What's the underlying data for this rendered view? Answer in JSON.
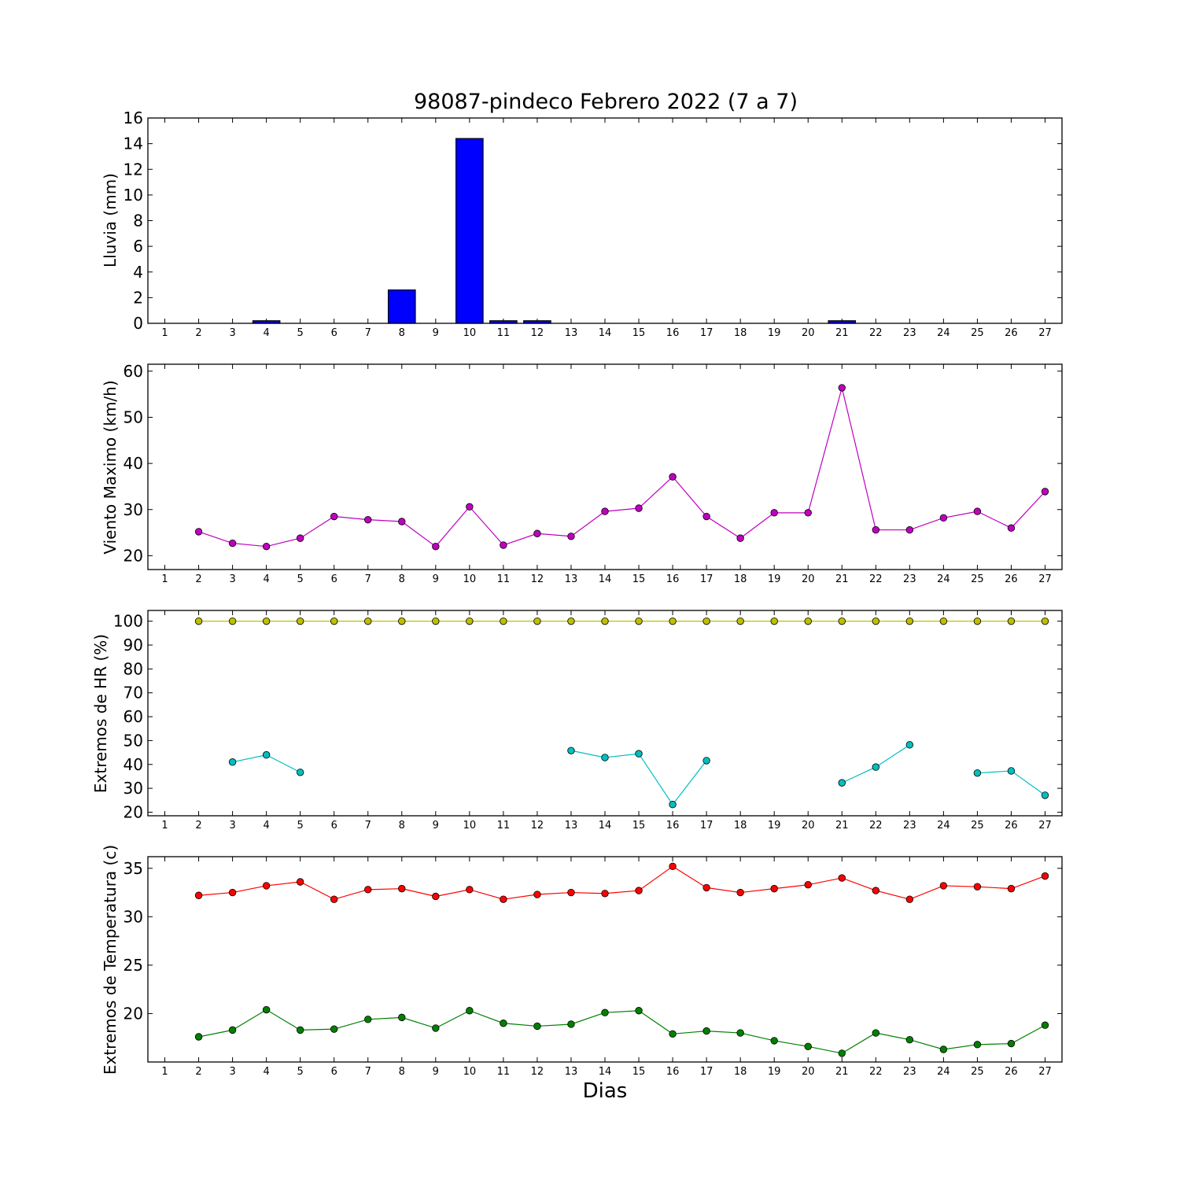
{
  "title": "98087-pindeco Febrero 2022  (7 a 7)",
  "xlabel": "Dias",
  "x_ticks": [
    1,
    2,
    3,
    4,
    5,
    6,
    7,
    8,
    9,
    10,
    11,
    12,
    13,
    14,
    15,
    16,
    17,
    18,
    19,
    20,
    21,
    22,
    23,
    24,
    25,
    26,
    27
  ],
  "chart_data": [
    {
      "type": "bar",
      "ylabel": "Lluvia (mm)",
      "ylim": [
        0,
        16
      ],
      "yticks": [
        0,
        2,
        4,
        6,
        8,
        10,
        12,
        14,
        16
      ],
      "xlim": [
        0.5,
        27.5
      ],
      "color": "#0000ff",
      "x": [
        2,
        3,
        4,
        5,
        6,
        7,
        8,
        9,
        10,
        11,
        12,
        13,
        14,
        15,
        16,
        17,
        18,
        19,
        20,
        21,
        22,
        23,
        24,
        25,
        26,
        27
      ],
      "values": [
        0,
        0,
        0.2,
        0,
        0,
        0,
        2.6,
        0,
        14.4,
        0.2,
        0.2,
        0,
        0,
        0,
        0,
        0,
        0,
        0,
        0,
        0.2,
        0,
        0,
        0,
        0,
        0,
        0
      ]
    },
    {
      "type": "line",
      "ylabel": "Viento Maximo (km/h)",
      "ylim": [
        17,
        61.5
      ],
      "yticks": [
        20,
        30,
        40,
        50,
        60
      ],
      "xlim": [
        0.5,
        27.5
      ],
      "series": [
        {
          "color": "#bf00bf",
          "x": [
            2,
            3,
            4,
            5,
            6,
            7,
            8,
            9,
            10,
            11,
            12,
            13,
            14,
            15,
            16,
            17,
            18,
            19,
            20,
            21,
            22,
            23,
            24,
            25,
            26,
            27
          ],
          "values": [
            25.2,
            22.7,
            22.0,
            23.8,
            28.5,
            27.8,
            27.4,
            22.0,
            30.6,
            22.3,
            24.8,
            24.2,
            29.6,
            30.3,
            37.1,
            28.5,
            23.8,
            29.3,
            29.3,
            56.4,
            25.6,
            25.6,
            28.2,
            29.6,
            26.0,
            33.9
          ]
        }
      ]
    },
    {
      "type": "line",
      "ylabel": "Extremos de HR (%)",
      "ylim": [
        18.5,
        104.5
      ],
      "yticks": [
        20,
        30,
        40,
        50,
        60,
        70,
        80,
        90,
        100
      ],
      "xlim": [
        0.5,
        27.5
      ],
      "series": [
        {
          "color": "#bfbf00",
          "x": [
            2,
            3,
            4,
            5,
            6,
            7,
            8,
            9,
            10,
            11,
            12,
            13,
            14,
            15,
            16,
            17,
            18,
            19,
            20,
            21,
            22,
            23,
            24,
            25,
            26,
            27
          ],
          "values": [
            100,
            100,
            100,
            100,
            100,
            100,
            100,
            100,
            100,
            100,
            100,
            100,
            100,
            100,
            100,
            100,
            100,
            100,
            100,
            100,
            100,
            100,
            100,
            100,
            100,
            100
          ]
        },
        {
          "color": "#00bfbf",
          "x": [
            2,
            3,
            4,
            5,
            6,
            7,
            8,
            9,
            10,
            11,
            12,
            13,
            14,
            15,
            16,
            17,
            18,
            19,
            20,
            21,
            22,
            23,
            24,
            25,
            26,
            27
          ],
          "values": [
            null,
            41,
            44,
            36.7,
            null,
            null,
            null,
            null,
            null,
            null,
            null,
            45.8,
            42.9,
            44.5,
            23.2,
            41.6,
            null,
            null,
            null,
            32.3,
            38.9,
            48.2,
            null,
            36.4,
            37.3,
            27.1
          ]
        }
      ]
    },
    {
      "type": "line",
      "ylabel": "Extremos de Temperatura (c)",
      "ylim": [
        15,
        36.2
      ],
      "yticks": [
        20,
        25,
        30,
        35
      ],
      "xlim": [
        0.5,
        27.5
      ],
      "series": [
        {
          "color": "#ff0000",
          "x": [
            2,
            3,
            4,
            5,
            6,
            7,
            8,
            9,
            10,
            11,
            12,
            13,
            14,
            15,
            16,
            17,
            18,
            19,
            20,
            21,
            22,
            23,
            24,
            25,
            26,
            27
          ],
          "values": [
            32.2,
            32.5,
            33.2,
            33.6,
            31.8,
            32.8,
            32.9,
            32.1,
            32.8,
            31.8,
            32.3,
            32.5,
            32.4,
            32.7,
            35.2,
            33.0,
            32.5,
            32.9,
            33.3,
            34.0,
            32.7,
            31.8,
            33.2,
            33.1,
            32.9,
            34.2
          ]
        },
        {
          "color": "#008000",
          "x": [
            2,
            3,
            4,
            5,
            6,
            7,
            8,
            9,
            10,
            11,
            12,
            13,
            14,
            15,
            16,
            17,
            18,
            19,
            20,
            21,
            22,
            23,
            24,
            25,
            26,
            27
          ],
          "values": [
            17.6,
            18.3,
            20.4,
            18.3,
            18.4,
            19.4,
            19.6,
            18.5,
            20.3,
            19.0,
            18.7,
            18.9,
            20.1,
            20.3,
            17.9,
            18.2,
            18.0,
            17.2,
            16.6,
            15.9,
            18.0,
            17.3,
            16.3,
            16.8,
            16.9,
            18.8
          ]
        }
      ]
    }
  ]
}
